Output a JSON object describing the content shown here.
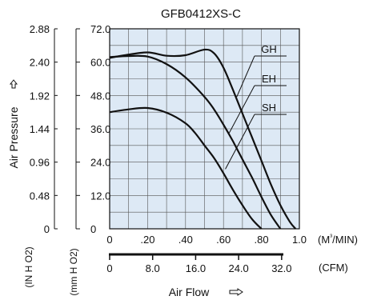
{
  "chart_data": {
    "type": "line",
    "title": "GFB0412XS-C",
    "ylabel": "Air Pressure",
    "xlabel": "Air Flow",
    "left_unit_label": "(IN H O2)",
    "inner_unit_label": "(mm H O2)",
    "x_unit_label": "(M³/MIN)",
    "x2_unit_label": "(CFM)",
    "y_mm_ticks": [
      "0",
      "12.0",
      "24.0",
      "36.0",
      "48.0",
      "60.0",
      "72.0"
    ],
    "y_in_ticks": [
      "0",
      "0.48",
      "0.96",
      "1.44",
      "1.92",
      "2.40",
      "2.88"
    ],
    "x_ticks": [
      "0",
      ".20",
      ".40",
      ".60",
      ".80",
      "1.0"
    ],
    "x2_ticks": [
      "0",
      "8.0",
      "16.0",
      "24.0",
      "32.0"
    ],
    "xlim": [
      0,
      1.0
    ],
    "ylim": [
      0,
      72.0
    ],
    "grid": true,
    "background": "#dde9f5",
    "line_color": "#111111",
    "series": [
      {
        "name": "GH",
        "x": [
          0,
          0.08,
          0.2,
          0.3,
          0.4,
          0.5,
          0.55,
          0.6,
          0.65,
          0.7,
          0.75,
          0.8,
          0.85,
          0.9,
          0.95,
          0.98
        ],
        "y": [
          61.5,
          62.5,
          63.5,
          62.3,
          62.5,
          64.5,
          63.2,
          58.0,
          50.0,
          41.5,
          33.0,
          24.5,
          16.0,
          8.5,
          2.5,
          0
        ]
      },
      {
        "name": "EH",
        "x": [
          0,
          0.1,
          0.2,
          0.3,
          0.4,
          0.5,
          0.55,
          0.6,
          0.65,
          0.7,
          0.75,
          0.8,
          0.85,
          0.9
        ],
        "y": [
          61.8,
          62.2,
          62.0,
          59.3,
          54.5,
          47.5,
          43.0,
          37.5,
          31.5,
          25.0,
          18.5,
          11.5,
          5.0,
          0
        ]
      },
      {
        "name": "SH",
        "x": [
          0,
          0.1,
          0.2,
          0.3,
          0.4,
          0.45,
          0.5,
          0.55,
          0.6,
          0.65,
          0.7,
          0.75,
          0.8
        ],
        "y": [
          42.0,
          43.0,
          43.5,
          41.8,
          38.0,
          34.5,
          30.0,
          25.5,
          20.0,
          14.0,
          8.5,
          3.5,
          0
        ]
      }
    ],
    "annotations": [
      {
        "label": "GH",
        "target_x": 0.67,
        "target_y": 47.5
      },
      {
        "label": "EH",
        "target_x": 0.63,
        "target_y": 34.5
      },
      {
        "label": "SH",
        "target_x": 0.61,
        "target_y": 21.5
      }
    ]
  }
}
